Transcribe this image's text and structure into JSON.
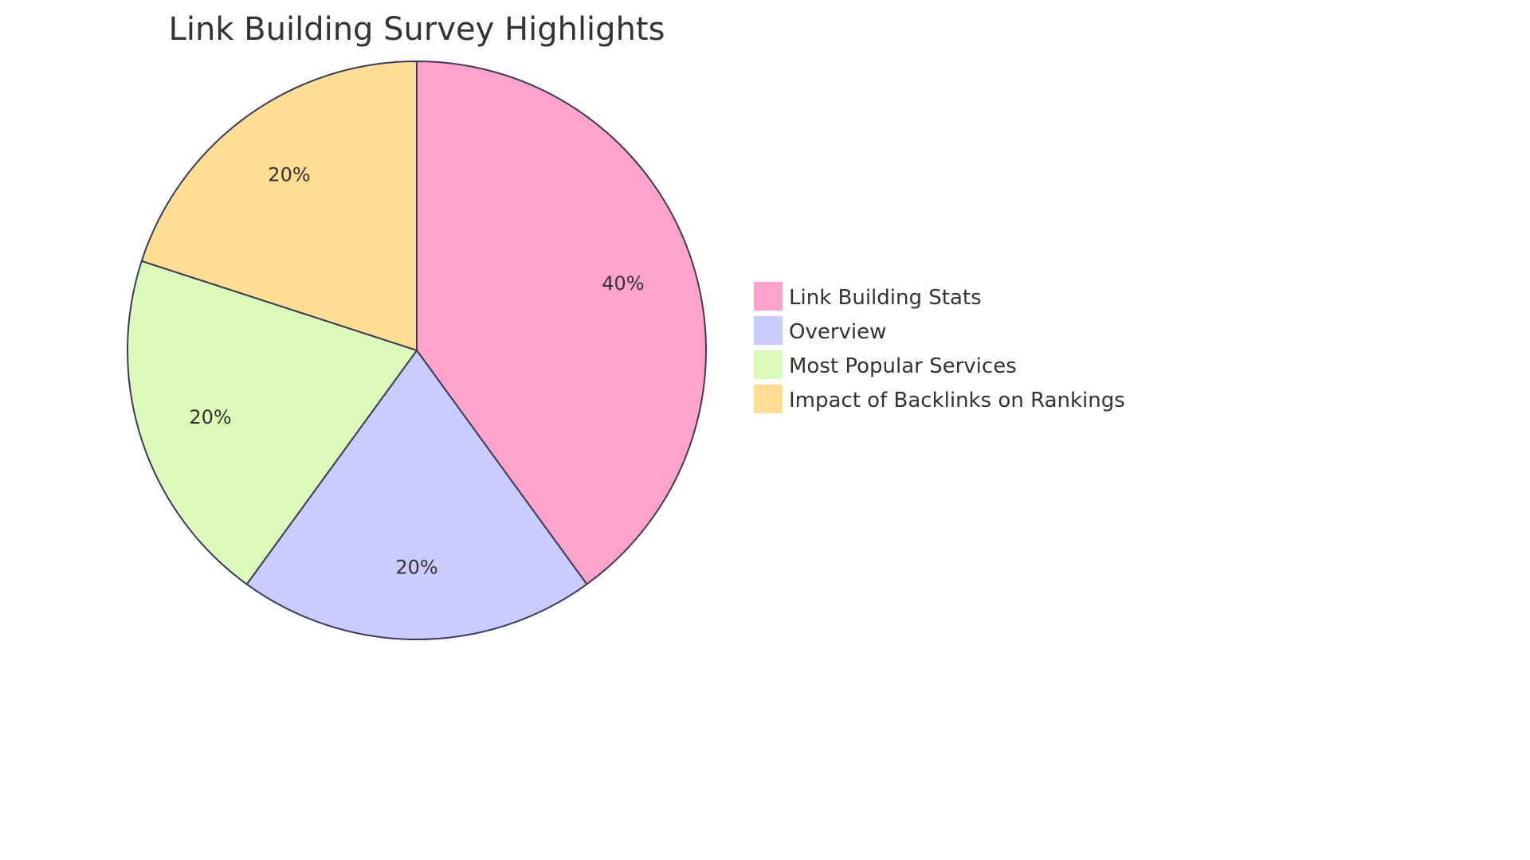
{
  "chart_data": {
    "type": "pie",
    "title": "Link Building Survey Highlights",
    "slices": [
      {
        "label": "Link Building Stats",
        "value": 40,
        "display": "40%",
        "color": "#FFA3CC"
      },
      {
        "label": "Overview",
        "value": 20,
        "display": "20%",
        "color": "#CACBFE"
      },
      {
        "label": "Most Popular Services",
        "value": 20,
        "display": "20%",
        "color": "#DBFABA"
      },
      {
        "label": "Impact of Backlinks on Rankings",
        "value": 20,
        "display": "20%",
        "color": "#FFDE94"
      }
    ],
    "stroke_color": "#3B3B55",
    "start": "top",
    "direction": "clockwise",
    "legend_placement": "right"
  }
}
